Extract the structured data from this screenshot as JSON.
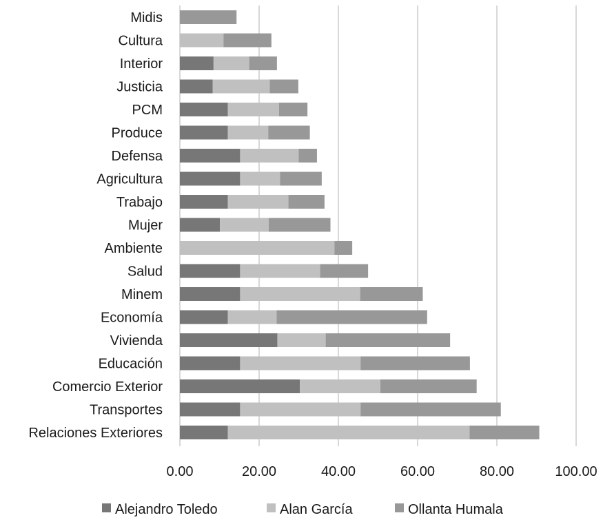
{
  "chart_data": {
    "type": "bar",
    "orientation": "horizontal",
    "stacked": true,
    "categories": [
      "Midis",
      "Cultura",
      "Interior",
      "Justicia",
      "PCM",
      "Produce",
      "Defensa",
      "Agricultura",
      "Trabajo",
      "Mujer",
      "Ambiente",
      "Salud",
      "Minem",
      "Economía",
      "Vivienda",
      "Educación",
      "Comercio Exterior",
      "Transportes",
      "Relaciones Exteriores"
    ],
    "series": [
      {
        "name": "Alejandro Toledo",
        "color": "#777777",
        "values": [
          0,
          0,
          8.5,
          8.3,
          12.1,
          12.1,
          15.2,
          15.2,
          12.1,
          10.1,
          0,
          15.2,
          15.2,
          12.1,
          24.6,
          15.2,
          30.3,
          15.2,
          12.1
        ]
      },
      {
        "name": "Alan García",
        "color": "#c0c0c0",
        "values": [
          0,
          11.0,
          9.0,
          14.4,
          12.9,
          10.2,
          14.8,
          10.1,
          15.3,
          12.3,
          39.0,
          20.2,
          30.3,
          12.3,
          12.2,
          30.4,
          20.3,
          30.4,
          61.0
        ]
      },
      {
        "name": "Ollanta Humala",
        "color": "#989898",
        "values": [
          14.3,
          12.1,
          7.0,
          7.2,
          7.2,
          10.5,
          4.6,
          10.5,
          9.1,
          15.6,
          4.5,
          12.1,
          15.8,
          38.0,
          31.4,
          27.6,
          24.3,
          35.4,
          17.6
        ]
      }
    ],
    "xlim": [
      0,
      100
    ],
    "ticks": [
      "0.00",
      "20.00",
      "40.00",
      "60.00",
      "80.00",
      "100.00"
    ],
    "tick_values": [
      0,
      20,
      40,
      60,
      80,
      100
    ],
    "grid": true,
    "legend_position": "bottom",
    "title": "",
    "xlabel": "",
    "ylabel": ""
  }
}
